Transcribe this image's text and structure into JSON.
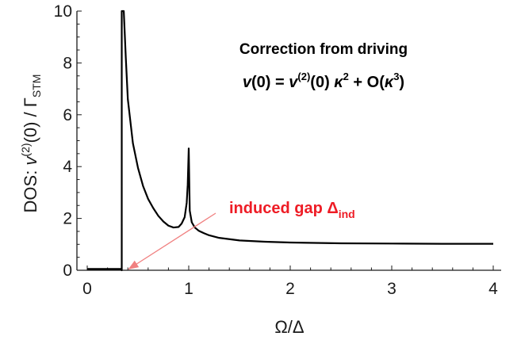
{
  "colors": {
    "curve": "#000000",
    "axis": "#1a1a1a",
    "annotation_red": "#ee1c25",
    "arrow_pink": "#f08080"
  },
  "chart_data": {
    "type": "line",
    "title": "",
    "xlabel": "Ω/Δ",
    "ylabel": {
      "prefix": "DOS: ",
      "var": "v",
      "sup": "(2)",
      "arg": "(0) / Γ",
      "sub": "STM"
    },
    "xlim": [
      0,
      4
    ],
    "ylim": [
      0,
      10
    ],
    "x_ticks": [
      0,
      1,
      2,
      3,
      4
    ],
    "y_ticks": [
      0,
      2,
      4,
      6,
      8,
      10
    ],
    "grid": false,
    "series": [
      {
        "x": [
          0,
          0.34,
          0.34,
          0.34,
          0.36,
          0.38,
          0.4,
          0.45,
          0.5,
          0.55,
          0.6,
          0.65,
          0.7,
          0.75,
          0.8,
          0.85,
          0.9,
          0.93,
          0.96,
          0.98,
          0.99,
          1.0,
          1.01,
          1.03,
          1.06,
          1.1,
          1.15,
          1.2,
          1.3,
          1.5,
          1.75,
          2.0,
          2.5,
          3.0,
          3.5,
          4.0
        ],
        "y": [
          0.05,
          0.05,
          0,
          10,
          10,
          8.2,
          6.6,
          4.9,
          3.95,
          3.25,
          2.75,
          2.4,
          2.1,
          1.88,
          1.72,
          1.65,
          1.67,
          1.8,
          2.05,
          2.6,
          3.3,
          4.7,
          2.3,
          1.85,
          1.65,
          1.52,
          1.43,
          1.35,
          1.25,
          1.15,
          1.1,
          1.07,
          1.04,
          1.03,
          1.02,
          1.02
        ]
      }
    ],
    "annotations": {
      "title": "Correction from driving",
      "equation": {
        "lhs_var": "v",
        "lhs_arg": "(0) = ",
        "rhs_var": "v",
        "rhs_sup": "(2)",
        "rhs_arg": "(0) ",
        "kappa": "κ",
        "kappa_pow": "2",
        "plus_O": " + O(",
        "kappa_pow3": "3",
        "close": ")"
      },
      "gap_label": {
        "text": "induced gap  Δ",
        "sub": "ind",
        "arrow_to_x": 0.34,
        "arrow_to_y": 0
      }
    }
  }
}
